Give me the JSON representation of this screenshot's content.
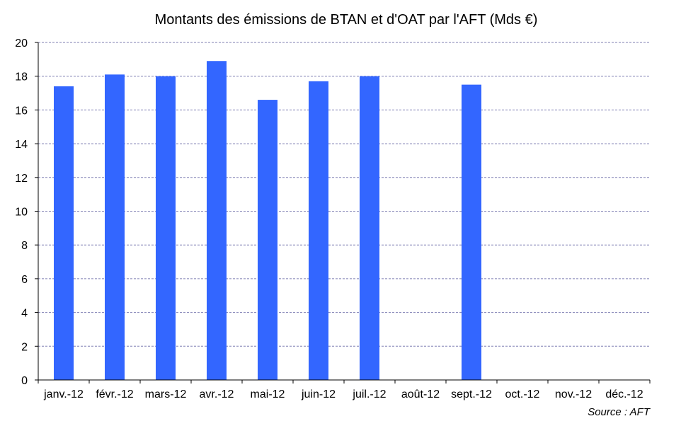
{
  "chart_data": {
    "type": "bar",
    "title": "Montants des émissions de BTAN  et d'OAT par l'AFT (Mds €)",
    "xlabel": "",
    "ylabel": "",
    "categories": [
      "janv.-12",
      "févr.-12",
      "mars-12",
      "avr.-12",
      "mai-12",
      "juin-12",
      "juil.-12",
      "août-12",
      "sept.-12",
      "oct.-12",
      "nov.-12",
      "déc.-12"
    ],
    "values": [
      17.4,
      18.1,
      18.0,
      18.9,
      16.6,
      17.7,
      18.0,
      null,
      17.5,
      null,
      null,
      null
    ],
    "ylim": [
      0,
      20
    ],
    "yticks": [
      "0",
      "2",
      "4",
      "6",
      "8",
      "10",
      "12",
      "14",
      "16",
      "18",
      "20"
    ],
    "grid": true,
    "legend": "none",
    "source": "Source : AFT",
    "colors": {
      "bar": "#3366ff",
      "grid": "#7f7fb2",
      "axis": "#000000"
    }
  }
}
